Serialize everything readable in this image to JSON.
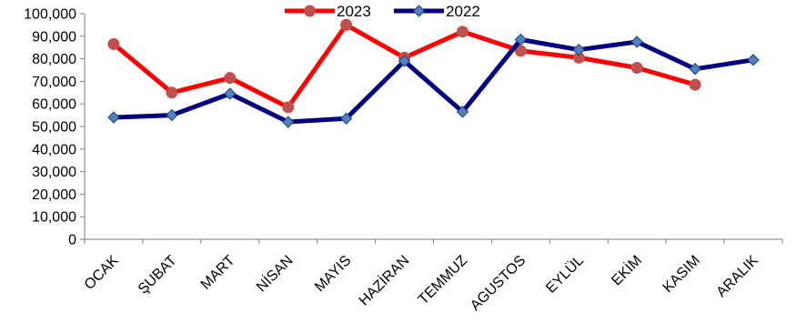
{
  "chart_data": {
    "type": "line",
    "categories": [
      "OCAK",
      "ŞUBAT",
      "MART",
      "NİSAN",
      "MAYIS",
      "HAZİRAN",
      "TEMMUZ",
      "AGUSTOS",
      "EYLÜL",
      "EKİM",
      "KASIM",
      "ARALIK"
    ],
    "ylim": [
      0,
      100000
    ],
    "yticks": [
      "0",
      "10,000",
      "20,000",
      "30,000",
      "40,000",
      "50,000",
      "60,000",
      "70,000",
      "80,000",
      "90,000",
      "100,000"
    ],
    "legend_position": "top-center",
    "grid": false,
    "series": [
      {
        "name": "2023",
        "color": "#ff0000",
        "marker": "circle",
        "values": [
          86500,
          65000,
          71500,
          58500,
          95000,
          80500,
          92000,
          83500,
          80500,
          76000,
          68500,
          null
        ]
      },
      {
        "name": "2022",
        "color": "#000080",
        "marker": "diamond",
        "values": [
          54000,
          55000,
          64500,
          52000,
          53500,
          79000,
          56500,
          88500,
          84000,
          87500,
          75500,
          79500
        ]
      }
    ]
  }
}
